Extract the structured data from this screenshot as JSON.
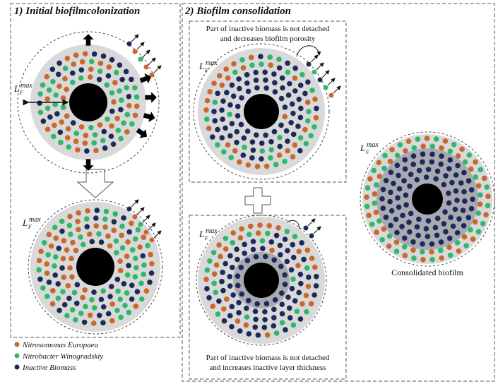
{
  "panels": [
    {
      "title": "1) Initial biofilmcolonization"
    },
    {
      "title": "2) Biofilm consolidation",
      "notes": [
        [
          "Part of inactive biomass is not detached",
          "and decreases biofilm porosity"
        ],
        [
          "Part of inactive biomass is not detached",
          "and increases inactive layer thickness"
        ]
      ]
    }
  ],
  "discs": [
    {
      "label": {
        "symbol": "L",
        "subscript": "F",
        "superscript": "max"
      }
    },
    {
      "label": {
        "symbol": "L",
        "subscript": "F",
        "superscript": "max"
      }
    },
    {
      "label": {
        "symbol": "L",
        "subscript": "F",
        "superscript": "max"
      }
    },
    {
      "label": {
        "symbol": "L",
        "subscript": "F",
        "superscript": "max"
      }
    },
    {
      "label": {
        "symbol": "L",
        "subscript": "F",
        "superscript": "max"
      },
      "caption": "Consolidated biofilm"
    }
  ],
  "legend": [
    {
      "label": "Nitrosomonas Europaea",
      "color": "#c8682c"
    },
    {
      "label": "Nitrobacter Winogradskiy",
      "color": "#2fb86b"
    },
    {
      "label": "Inactive Biomass",
      "color": "#1c2a5a"
    }
  ]
}
